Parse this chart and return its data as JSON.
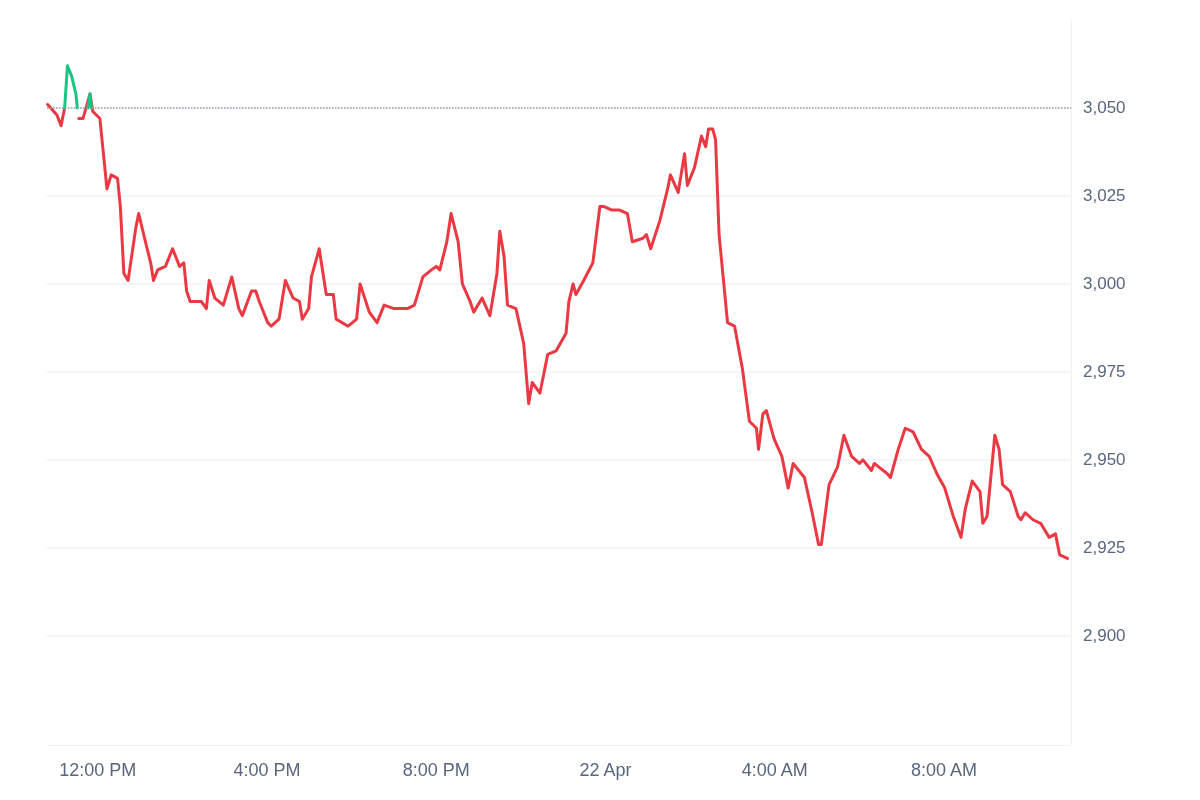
{
  "chart_data": {
    "type": "line",
    "xlim": [
      "--04-21T10:48",
      "--04-22T11:00"
    ],
    "xticks": [
      {
        "value": "--04-21T12:00",
        "label": "12:00 PM"
      },
      {
        "value": "--04-21T16:00",
        "label": "4:00 PM"
      },
      {
        "value": "--04-21T20:00",
        "label": "8:00 PM"
      },
      {
        "value": "--04-22T00:00",
        "label": "22 Apr"
      },
      {
        "value": "--04-22T04:00",
        "label": "4:00 AM"
      },
      {
        "value": "--04-22T08:00",
        "label": "8:00 AM"
      }
    ],
    "ylim": [
      2869,
      3075
    ],
    "yticks": [
      {
        "value": 2900,
        "label": "2,900"
      },
      {
        "value": 2925,
        "label": "2,925"
      },
      {
        "value": 2950,
        "label": "2,950"
      },
      {
        "value": 2975,
        "label": "2,975"
      },
      {
        "value": 3000,
        "label": "3,000"
      },
      {
        "value": 3025,
        "label": "3,025"
      },
      {
        "value": 3050,
        "label": "3,050"
      }
    ],
    "grid": "y",
    "marker": "none",
    "line_style": "solid",
    "ref_lines": [
      {
        "axis": "y",
        "value": 3050,
        "line_style": "dotted",
        "color": "#9aa0ab"
      }
    ],
    "series": [
      {
        "type": "line",
        "color": "#ea3943",
        "x": [
          "--04-21T10:49",
          "--04-21T11:02",
          "--04-21T11:08",
          "--04-21T11:13",
          "--04-21T11:17",
          "--04-21T11:23",
          "--04-21T11:29",
          "--04-21T11:33",
          "--04-21T11:39",
          "--04-21T11:49",
          "--04-21T11:53",
          "--04-21T12:03",
          "--04-21T12:07",
          "--04-21T12:13",
          "--04-21T12:19",
          "--04-21T12:28",
          "--04-21T12:32",
          "--04-21T12:37",
          "--04-21T12:43",
          "--04-21T12:54",
          "--04-21T12:58",
          "--04-21T13:10",
          "--04-21T13:15",
          "--04-21T13:19",
          "--04-21T13:25",
          "--04-21T13:36",
          "--04-21T13:46",
          "--04-21T13:56",
          "--04-21T14:02",
          "--04-21T14:06",
          "--04-21T14:11",
          "--04-21T14:27",
          "--04-21T14:34",
          "--04-21T14:38",
          "--04-21T14:46",
          "--04-21T14:58",
          "--04-21T15:10",
          "--04-21T15:20",
          "--04-21T15:25",
          "--04-21T15:38",
          "--04-21T15:44",
          "--04-21T15:49",
          "--04-21T16:01",
          "--04-21T16:06",
          "--04-21T16:17",
          "--04-21T16:26",
          "--04-21T16:37",
          "--04-21T16:46",
          "--04-21T16:50",
          "--04-21T16:59",
          "--04-21T17:03",
          "--04-21T17:14",
          "--04-21T17:24",
          "--04-21T17:34",
          "--04-21T17:38",
          "--04-21T17:55",
          "--04-21T18:07",
          "--04-21T18:12",
          "--04-21T18:25",
          "--04-21T18:36",
          "--04-21T18:46",
          "--04-21T19:00",
          "--04-21T19:19",
          "--04-21T19:29",
          "--04-21T19:41",
          "--04-21T19:53",
          "--04-21T20:00",
          "--04-21T20:05",
          "--04-21T20:15",
          "--04-21T20:21",
          "--04-21T20:31",
          "--04-21T20:37",
          "--04-21T20:48",
          "--04-21T20:53",
          "--04-21T21:05",
          "--04-21T21:16",
          "--04-21T21:26",
          "--04-21T21:30",
          "--04-21T21:36",
          "--04-21T21:41",
          "--04-21T21:53",
          "--04-21T22:04",
          "--04-21T22:11",
          "--04-21T22:16",
          "--04-21T22:27",
          "--04-21T22:38",
          "--04-21T22:50",
          "--04-21T23:04",
          "--04-21T23:08",
          "--04-21T23:14",
          "--04-21T23:18",
          "--04-21T23:29",
          "--04-21T23:42",
          "--04-21T23:52",
          "--04-21T23:58",
          "--04-22T00:09",
          "--04-22T00:20",
          "--04-22T00:31",
          "--04-22T00:38",
          "--04-22T00:53",
          "--04-22T00:58",
          "--04-22T01:04",
          "--04-22T01:17",
          "--04-22T01:28",
          "--04-22T01:32",
          "--04-22T01:43",
          "--04-22T01:52",
          "--04-22T01:56",
          "--04-22T02:06",
          "--04-22T02:16",
          "--04-22T02:22",
          "--04-22T02:26",
          "--04-22T02:32",
          "--04-22T02:36",
          "--04-22T02:41",
          "--04-22T02:53",
          "--04-22T03:03",
          "--04-22T03:14",
          "--04-22T03:24",
          "--04-22T03:34",
          "--04-22T03:37",
          "--04-22T03:43",
          "--04-22T03:48",
          "--04-22T03:59",
          "--04-22T04:10",
          "--04-22T04:19",
          "--04-22T04:26",
          "--04-22T04:42",
          "--04-22T04:53",
          "--04-22T05:02",
          "--04-22T05:06",
          "--04-22T05:17",
          "--04-22T05:29",
          "--04-22T05:38",
          "--04-22T05:49",
          "--04-22T06:00",
          "--04-22T06:05",
          "--04-22T06:17",
          "--04-22T06:21",
          "--04-22T06:40",
          "--04-22T06:44",
          "--04-22T06:55",
          "--04-22T07:05",
          "--04-22T07:16",
          "--04-22T07:28",
          "--04-22T07:39",
          "--04-22T07:50",
          "--04-22T08:01",
          "--04-22T08:13",
          "--04-22T08:24",
          "--04-22T08:30",
          "--04-22T08:40",
          "--04-22T08:51",
          "--04-22T08:55",
          "--04-22T09:01",
          "--04-22T09:12",
          "--04-22T09:18",
          "--04-22T09:23",
          "--04-22T09:34",
          "--04-22T09:45",
          "--04-22T09:49",
          "--04-22T09:55",
          "--04-22T10:06",
          "--04-22T10:17",
          "--04-22T10:29",
          "--04-22T10:38",
          "--04-22T10:44",
          "--04-22T10:55"
        ],
        "values": [
          3051,
          3048,
          3045,
          3050,
          null,
          null,
          null,
          3047,
          3047,
          3054,
          3049,
          3047,
          3039,
          3027,
          3031,
          3030,
          3022,
          3003,
          3001,
          3016,
          3020,
          3010,
          3006,
          3001,
          3004,
          3005,
          3010,
          3005,
          3006,
          2998,
          2995,
          2995,
          2993,
          3001,
          2996,
          2994,
          3002,
          2993,
          2991,
          2998,
          2998,
          2995,
          2989,
          2988,
          2990,
          3001,
          2996,
          2995,
          2990,
          2993,
          3002,
          3010,
          2997,
          2997,
          2990,
          2988,
          2990,
          3000,
          2992,
          2989,
          2994,
          2993,
          2993,
          2994,
          3002,
          3004,
          3005,
          3004,
          3012,
          3020,
          3012,
          3000,
          2995,
          2992,
          2996,
          2991,
          3003,
          3015,
          3008,
          2994,
          2993,
          2983,
          2966,
          2972,
          2969,
          2980,
          2981,
          2986,
          2995,
          3000,
          2997,
          3001,
          3006,
          3022,
          3022,
          3021,
          3021,
          3020,
          3012,
          3013,
          3014,
          3010,
          3018,
          3027,
          3031,
          3026,
          3037,
          3028,
          3033,
          3042,
          3039,
          3044,
          3044,
          3041,
          3014,
          2989,
          2988,
          2976,
          2961,
          2959,
          2953,
          2963,
          2964,
          2956,
          2951,
          2942,
          2949,
          2945,
          2935,
          2926,
          2926,
          2943,
          2948,
          2957,
          2951,
          2949,
          2950,
          2947,
          2949,
          2946,
          2945,
          2953,
          2959,
          2958,
          2953,
          2951,
          2946,
          2942,
          2934,
          2928,
          2936,
          2944,
          2941,
          2932,
          2934,
          2957,
          2953,
          2943,
          2941,
          2934,
          2933,
          2935,
          2933,
          2932,
          2928,
          2929,
          2923,
          2922
        ]
      },
      {
        "color": "#16c784",
        "x": [
          "--04-21T11:13",
          "--04-21T11:17",
          "--04-21T11:23",
          "--04-21T11:29",
          "--04-21T11:31",
          "--04-21T11:36",
          "--04-21T11:46",
          "--04-21T11:49",
          "--04-21T11:51"
        ],
        "values": [
          3050,
          3062,
          3059,
          3054,
          3050,
          null,
          3050,
          3054,
          3050
        ]
      }
    ]
  }
}
